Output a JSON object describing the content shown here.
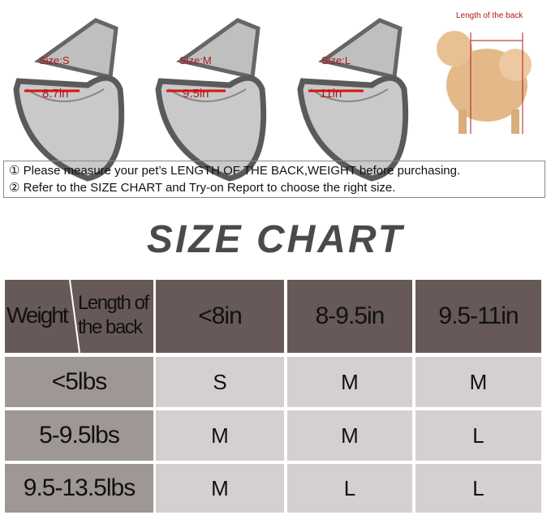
{
  "bags": [
    {
      "size": "Size:S",
      "width": "8.7in"
    },
    {
      "size": "Size:M",
      "width": "9.5in"
    },
    {
      "size": "Size:L",
      "width": "11in"
    }
  ],
  "dog": {
    "label": "Length of the back"
  },
  "notes": [
    "① Please measure your pet’s LENGTH OF THE BACK,WEIGHT before purchasing.",
    "② Refer to the SIZE CHART and Try-on Report to choose the right size."
  ],
  "title": "SIZE CHART",
  "table": {
    "corner_row": "Weight",
    "corner_col_1": "Length of",
    "corner_col_2": "the back",
    "columns": [
      "<8in",
      "8-9.5in",
      "9.5-11in"
    ],
    "rows": [
      {
        "weight": "<5lbs",
        "sizes": [
          "S",
          "M",
          "M"
        ]
      },
      {
        "weight": "5-9.5lbs",
        "sizes": [
          "M",
          "M",
          "L"
        ]
      },
      {
        "weight": "9.5-13.5lbs",
        "sizes": [
          "M",
          "L",
          "L"
        ]
      }
    ]
  },
  "colors": {
    "header": "#665957",
    "row_header": "#9e9796",
    "cell": "#d3d0cf",
    "accent": "#b01818"
  }
}
